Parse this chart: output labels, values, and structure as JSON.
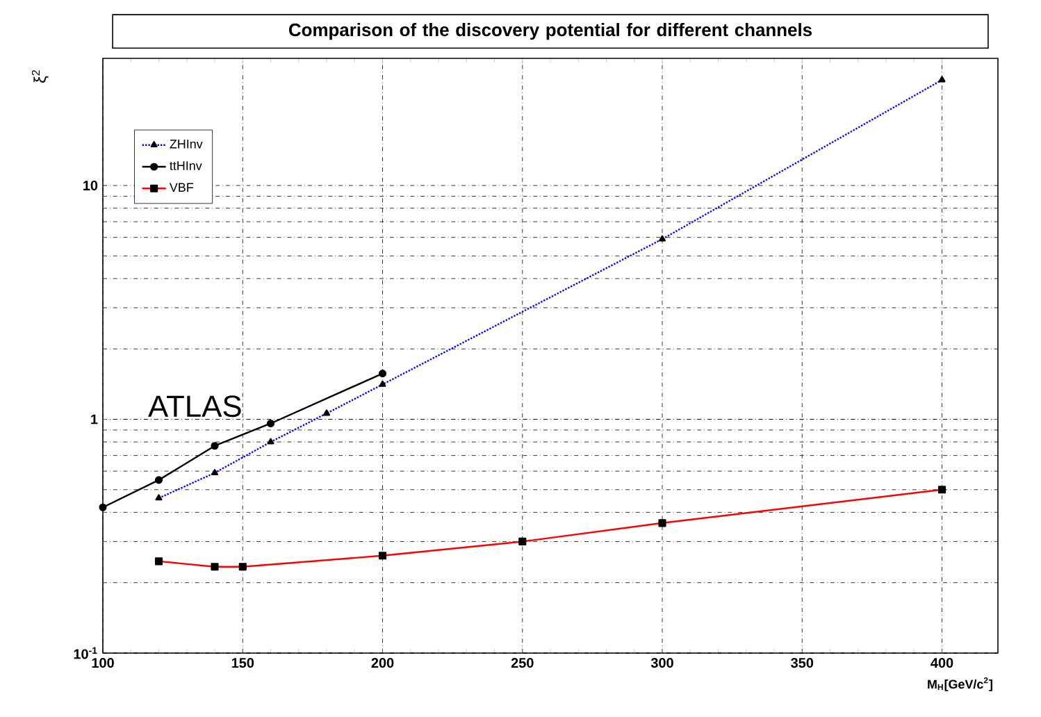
{
  "chart_data": {
    "type": "line",
    "title": "Comparison of the discovery potential for different channels",
    "xlabel": "M$_{H}$[GeV/c$^{2}$]",
    "ylabel": "ξ$^{2}$",
    "annotations": [
      "ATLAS"
    ],
    "series": [
      {
        "name": "ZHInv",
        "color": "#0000ff",
        "marker": "triangle",
        "line_style": "dotted",
        "x": [
          120,
          140,
          160,
          180,
          200,
          300,
          400
        ],
        "values": [
          0.46,
          0.59,
          0.8,
          1.06,
          1.41,
          5.9,
          28.3
        ]
      },
      {
        "name": "ttHInv",
        "color": "#000000",
        "marker": "circle",
        "line_style": "solid",
        "x": [
          100,
          120,
          140,
          160,
          200
        ],
        "values": [
          0.42,
          0.55,
          0.77,
          0.96,
          1.57
        ]
      },
      {
        "name": "VBF",
        "color": "#ff0000",
        "marker": "square",
        "line_style": "solid",
        "x": [
          120,
          140,
          150,
          200,
          250,
          300,
          400
        ],
        "values": [
          0.247,
          0.234,
          0.234,
          0.261,
          0.3,
          0.36,
          0.5
        ]
      }
    ],
    "xlim": [
      100,
      420
    ],
    "ylim": [
      0.1,
      35
    ],
    "xticks": [
      100,
      150,
      200,
      250,
      300,
      350,
      400
    ],
    "yticks": [
      {
        "value": 0.1,
        "label": "10$^{-1}$"
      },
      1,
      10
    ],
    "log": "y",
    "grid": true,
    "legend": "top left"
  }
}
